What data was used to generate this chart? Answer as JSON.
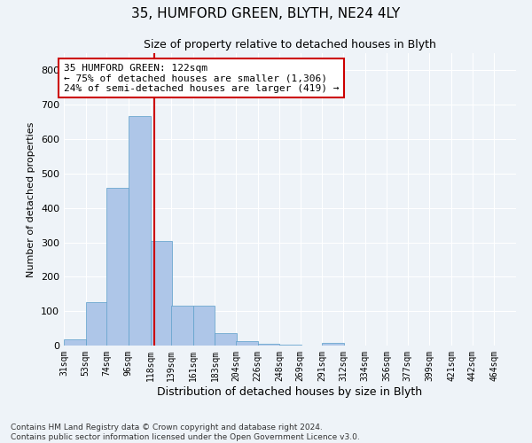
{
  "title": "35, HUMFORD GREEN, BLYTH, NE24 4LY",
  "subtitle": "Size of property relative to detached houses in Blyth",
  "xlabel": "Distribution of detached houses by size in Blyth",
  "ylabel": "Number of detached properties",
  "footnote1": "Contains HM Land Registry data © Crown copyright and database right 2024.",
  "footnote2": "Contains public sector information licensed under the Open Government Licence v3.0.",
  "annotation_title": "35 HUMFORD GREEN: 122sqm",
  "annotation_line1": "← 75% of detached houses are smaller (1,306)",
  "annotation_line2": "24% of semi-detached houses are larger (419) →",
  "bar_color": "#aec6e8",
  "bar_edge_color": "#5a9ec9",
  "vline_color": "#cc0000",
  "vline_x": 122,
  "annotation_box_color": "#cc0000",
  "background_color": "#eef3f8",
  "grid_color": "#ffffff",
  "categories": [
    "31sqm",
    "53sqm",
    "74sqm",
    "96sqm",
    "118sqm",
    "139sqm",
    "161sqm",
    "183sqm",
    "204sqm",
    "226sqm",
    "248sqm",
    "269sqm",
    "291sqm",
    "312sqm",
    "334sqm",
    "356sqm",
    "377sqm",
    "399sqm",
    "421sqm",
    "442sqm",
    "464sqm"
  ],
  "bin_edges": [
    31,
    53,
    74,
    96,
    118,
    139,
    161,
    183,
    204,
    226,
    248,
    269,
    291,
    312,
    334,
    356,
    377,
    399,
    421,
    442,
    464
  ],
  "values": [
    17,
    125,
    458,
    668,
    303,
    116,
    117,
    35,
    13,
    6,
    2,
    0,
    9,
    0,
    0,
    0,
    0,
    0,
    0,
    0
  ],
  "ylim": [
    0,
    850
  ],
  "yticks": [
    0,
    100,
    200,
    300,
    400,
    500,
    600,
    700,
    800
  ]
}
